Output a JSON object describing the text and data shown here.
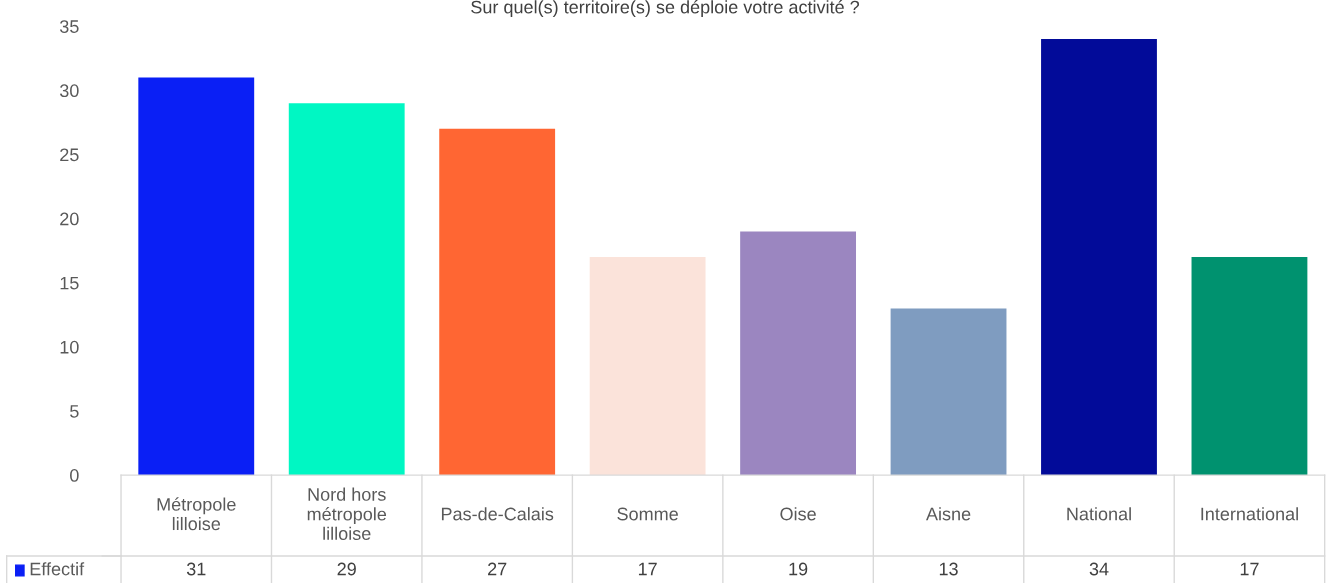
{
  "chart_data": {
    "type": "bar",
    "title": "Sur quel(s) territoire(s) se déploie votre activité ?",
    "categories": [
      "Métropole\nlilloise",
      "Nord hors\nmétropole\nlilloise",
      "Pas-de-Calais",
      "Somme",
      "Oise",
      "Aisne",
      "National",
      "International"
    ],
    "series": [
      {
        "name": "Effectif",
        "color": "#0a1ff5",
        "values": [
          31,
          29,
          27,
          17,
          19,
          13,
          34,
          17
        ],
        "colors": [
          "#0a1ff5",
          "#00f7c3",
          "#ff6633",
          "#fbe3da",
          "#9b86c0",
          "#7f9cc0",
          "#020b99",
          "#00926f"
        ]
      }
    ],
    "ylim": [
      0,
      35
    ],
    "yticks": [
      0,
      5,
      10,
      15,
      20,
      25,
      30,
      35
    ],
    "grid": false,
    "legend": "bottom",
    "data_labels": true
  }
}
